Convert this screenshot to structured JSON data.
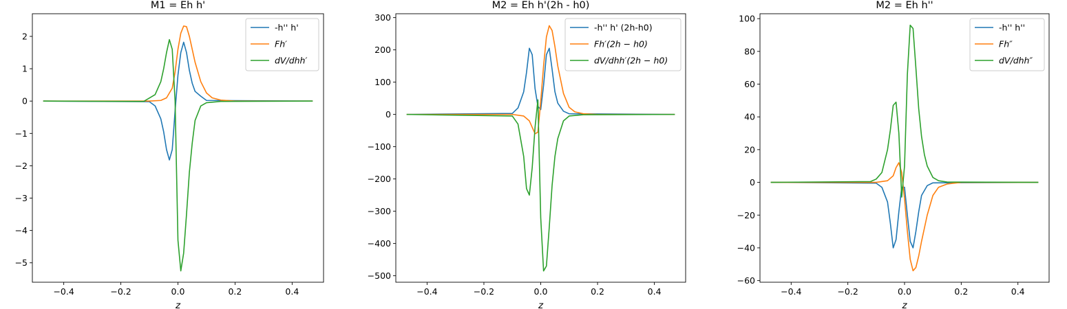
{
  "figure": {
    "background": "#ffffff"
  },
  "colors": {
    "blue": "#1f77b4",
    "orange": "#ff7f0e",
    "green": "#2ca02c"
  },
  "chart_data": [
    {
      "type": "line",
      "title": "M1 = Eh h'",
      "xlabel": "z",
      "ylabel": "",
      "xlim": [
        -0.51,
        0.51
      ],
      "ylim": [
        -5.6,
        2.7
      ],
      "xticks": [
        -0.4,
        -0.2,
        0.0,
        0.2,
        0.4
      ],
      "xtick_labels": [
        "−0.4",
        "−0.2",
        "0.0",
        "0.2",
        "0.4"
      ],
      "yticks": [
        -5,
        -4,
        -3,
        -2,
        -1,
        0,
        1,
        2
      ],
      "ytick_labels": [
        "−5",
        "−4",
        "−3",
        "−2",
        "−1",
        "0",
        "1",
        "2"
      ],
      "legend_position": "top-right",
      "series": [
        {
          "name": "-h'' h'",
          "color": "#1f77b4",
          "x": [
            -0.47,
            -0.1,
            -0.08,
            -0.06,
            -0.05,
            -0.04,
            -0.03,
            -0.02,
            -0.01,
            0.0,
            0.01,
            0.02,
            0.03,
            0.04,
            0.05,
            0.06,
            0.08,
            0.1,
            0.47
          ],
          "y": [
            0,
            -0.02,
            -0.15,
            -0.55,
            -0.95,
            -1.5,
            -1.82,
            -1.5,
            -0.3,
            0.8,
            1.5,
            1.82,
            1.5,
            0.95,
            0.55,
            0.3,
            0.15,
            0.02,
            0
          ]
        },
        {
          "name": "Fh′",
          "color": "#ff7f0e",
          "x": [
            -0.47,
            -0.1,
            -0.06,
            -0.04,
            -0.02,
            -0.01,
            0.0,
            0.01,
            0.02,
            0.03,
            0.04,
            0.05,
            0.06,
            0.08,
            0.1,
            0.12,
            0.15,
            0.2,
            0.47
          ],
          "y": [
            0,
            0.0,
            0.02,
            0.1,
            0.4,
            0.9,
            1.6,
            2.1,
            2.32,
            2.3,
            2.0,
            1.6,
            1.2,
            0.6,
            0.25,
            0.1,
            0.03,
            0.0,
            0
          ]
        },
        {
          "name": "dV/dhh′",
          "color": "#2ca02c",
          "x": [
            -0.47,
            -0.12,
            -0.08,
            -0.06,
            -0.05,
            -0.04,
            -0.03,
            -0.02,
            -0.01,
            0.0,
            0.01,
            0.02,
            0.03,
            0.04,
            0.05,
            0.06,
            0.08,
            0.1,
            0.15,
            0.47
          ],
          "y": [
            0,
            -0.01,
            0.2,
            0.6,
            1.0,
            1.5,
            1.9,
            1.6,
            0.0,
            -4.3,
            -5.25,
            -4.7,
            -3.5,
            -2.2,
            -1.3,
            -0.6,
            -0.15,
            -0.05,
            -0.01,
            0
          ]
        }
      ]
    },
    {
      "type": "line",
      "title": "M2 = Eh h'(2h - h0)",
      "xlabel": "z",
      "ylabel": "",
      "xlim": [
        -0.51,
        0.51
      ],
      "ylim": [
        -520,
        312
      ],
      "xticks": [
        -0.4,
        -0.2,
        0.0,
        0.2,
        0.4
      ],
      "xtick_labels": [
        "−0.4",
        "−0.2",
        "0.0",
        "0.2",
        "0.4"
      ],
      "yticks": [
        -500,
        -400,
        -300,
        -200,
        -100,
        0,
        100,
        200,
        300
      ],
      "ytick_labels": [
        "−500",
        "−400",
        "−300",
        "−200",
        "−100",
        "0",
        "100",
        "200",
        "300"
      ],
      "legend_position": "top-right",
      "series": [
        {
          "name": "-h'' h' (2h-h0)",
          "color": "#1f77b4",
          "x": [
            -0.47,
            -0.1,
            -0.08,
            -0.06,
            -0.05,
            -0.04,
            -0.03,
            -0.02,
            -0.01,
            0.0,
            0.01,
            0.02,
            0.03,
            0.04,
            0.05,
            0.06,
            0.08,
            0.1,
            0.47
          ],
          "y": [
            0,
            3,
            20,
            70,
            130,
            205,
            185,
            80,
            25,
            15,
            90,
            185,
            205,
            140,
            70,
            35,
            10,
            2,
            0
          ]
        },
        {
          "name": "Fh′(2h − h0)",
          "color": "#ff7f0e",
          "x": [
            -0.47,
            -0.1,
            -0.06,
            -0.04,
            -0.03,
            -0.02,
            -0.01,
            0.0,
            0.01,
            0.02,
            0.03,
            0.04,
            0.05,
            0.06,
            0.08,
            0.1,
            0.12,
            0.15,
            0.2,
            0.47
          ],
          "y": [
            0,
            0,
            -5,
            -20,
            -40,
            -60,
            -55,
            40,
            150,
            240,
            275,
            260,
            210,
            150,
            65,
            22,
            8,
            2,
            0,
            0
          ]
        },
        {
          "name": "dV/dhh′(2h − h0)",
          "color": "#2ca02c",
          "x": [
            -0.47,
            -0.1,
            -0.08,
            -0.06,
            -0.05,
            -0.04,
            -0.03,
            -0.02,
            -0.01,
            0.0,
            0.01,
            0.02,
            0.03,
            0.04,
            0.05,
            0.06,
            0.08,
            0.1,
            0.15,
            0.47
          ],
          "y": [
            0,
            -5,
            -30,
            -130,
            -230,
            -250,
            -165,
            -40,
            45,
            -320,
            -485,
            -470,
            -350,
            -220,
            -130,
            -75,
            -20,
            -5,
            -1,
            0
          ]
        }
      ]
    },
    {
      "type": "line",
      "title": "M2 = Eh h''",
      "xlabel": "z",
      "ylabel": "",
      "xlim": [
        -0.51,
        0.51
      ],
      "ylim": [
        -61,
        103
      ],
      "xticks": [
        -0.4,
        -0.2,
        0.0,
        0.2,
        0.4
      ],
      "xtick_labels": [
        "−0.4",
        "−0.2",
        "0.0",
        "0.2",
        "0.4"
      ],
      "yticks": [
        -60,
        -40,
        -20,
        0,
        20,
        40,
        60,
        80,
        100
      ],
      "ytick_labels": [
        "−60",
        "−40",
        "−20",
        "0",
        "20",
        "40",
        "60",
        "80",
        "100"
      ],
      "legend_position": "top-right",
      "series": [
        {
          "name": "-h'' h''",
          "color": "#1f77b4",
          "x": [
            -0.47,
            -0.1,
            -0.08,
            -0.06,
            -0.05,
            -0.04,
            -0.03,
            -0.02,
            -0.01,
            0.0,
            0.01,
            0.02,
            0.03,
            0.04,
            0.05,
            0.06,
            0.08,
            0.1,
            0.47
          ],
          "y": [
            0,
            -0.5,
            -3,
            -12,
            -25,
            -40,
            -35,
            -18,
            -3,
            -3,
            -20,
            -36,
            -40,
            -30,
            -18,
            -8,
            -2,
            -0.3,
            0
          ]
        },
        {
          "name": "Fh″",
          "color": "#ff7f0e",
          "x": [
            -0.47,
            -0.1,
            -0.06,
            -0.04,
            -0.03,
            -0.02,
            -0.01,
            0.0,
            0.01,
            0.02,
            0.03,
            0.04,
            0.05,
            0.06,
            0.08,
            0.1,
            0.12,
            0.15,
            0.2,
            0.47
          ],
          "y": [
            0,
            0,
            1,
            4,
            9,
            12,
            6,
            -10,
            -30,
            -47,
            -54,
            -52,
            -45,
            -36,
            -20,
            -8,
            -3,
            -1,
            0,
            0
          ]
        },
        {
          "name": "dV/dhh″",
          "color": "#2ca02c",
          "x": [
            -0.47,
            -0.12,
            -0.1,
            -0.08,
            -0.06,
            -0.05,
            -0.04,
            -0.03,
            -0.02,
            -0.01,
            0.0,
            0.01,
            0.02,
            0.03,
            0.04,
            0.05,
            0.06,
            0.07,
            0.08,
            0.1,
            0.12,
            0.15,
            0.47
          ],
          "y": [
            0,
            0.5,
            2,
            6,
            20,
            32,
            47,
            49,
            30,
            -9,
            10,
            66,
            96,
            94,
            70,
            45,
            28,
            17,
            10,
            3,
            1,
            0.2,
            0
          ]
        }
      ]
    }
  ]
}
